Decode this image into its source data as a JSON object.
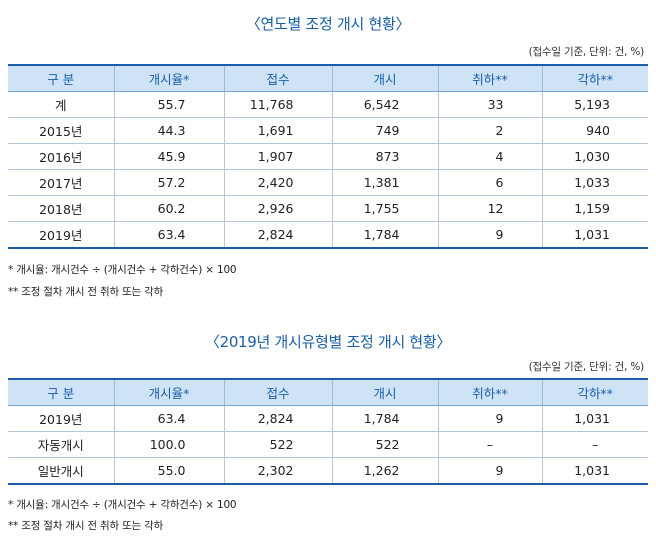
{
  "table1": {
    "title": "〈연도별 조정 개시 현황〉",
    "unit_note": "(접수일 기준, 단위: 건, %)",
    "headers": [
      "구 분",
      "개시율*",
      "접수",
      "개시",
      "취하**",
      "각하**"
    ],
    "rows": [
      [
        "계",
        "55.7",
        "11,768",
        "6,542",
        "33",
        "5,193"
      ],
      [
        "2015년",
        "44.3",
        "1,691",
        "749",
        "2",
        "940"
      ],
      [
        "2016년",
        "45.9",
        "1,907",
        "873",
        "4",
        "1,030"
      ],
      [
        "2017년",
        "57.2",
        "2,420",
        "1,381",
        "6",
        "1,033"
      ],
      [
        "2018년",
        "60.2",
        "2,926",
        "1,755",
        "12",
        "1,159"
      ],
      [
        "2019년",
        "63.4",
        "2,824",
        "1,784",
        "9",
        "1,031"
      ]
    ],
    "footnotes": [
      "* 개시율: 개시건수 ÷ (개시건수 + 각하건수) × 100",
      "** 조정 절차 개시 전 취하 또는 각하"
    ]
  },
  "table2": {
    "title": "〈2019년 개시유형별 조정 개시 현황〉",
    "unit_note": "(접수일 기준, 단위: 건, %)",
    "headers": [
      "구 분",
      "개시율*",
      "접수",
      "개시",
      "취하**",
      "각하**"
    ],
    "rows": [
      [
        "2019년",
        "63.4",
        "2,824",
        "1,784",
        "9",
        "1,031"
      ],
      [
        "자동개시",
        "100.0",
        "522",
        "522",
        "–",
        "–"
      ],
      [
        "일반개시",
        "55.0",
        "2,302",
        "1,262",
        "9",
        "1,031"
      ]
    ],
    "footnotes": [
      "* 개시율: 개시건수 ÷ (개시건수 + 각하건수) × 100",
      "** 조정 절차 개시 전 취하 또는 각하"
    ]
  }
}
